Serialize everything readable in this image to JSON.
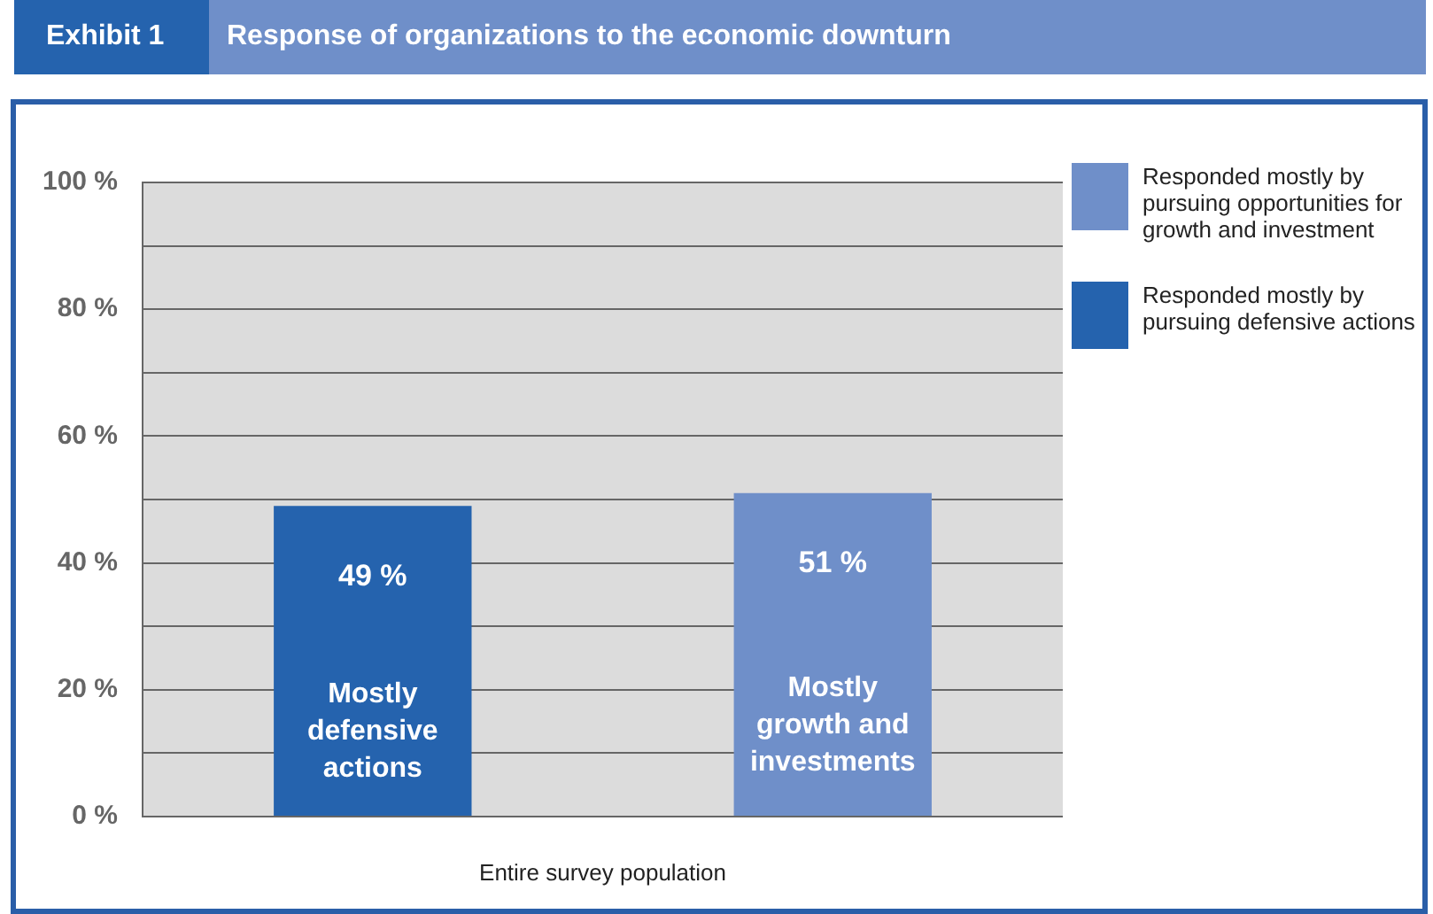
{
  "chart_data": {
    "type": "bar",
    "title": "Response of organizations to the economic downturn",
    "xlabel": "Entire survey population",
    "annotations": [
      "Exhibit 1",
      "Mostly defensive actions",
      "Mostly growth and investments"
    ],
    "categories": [
      null,
      null
    ],
    "series": [
      {
        "name": "Responded mostly by pursuing defensive actions",
        "color": "#2563ae",
        "values": [
          49,
          null
        ],
        "value_labels": [
          "49 %",
          null
        ]
      },
      {
        "name": "Responded mostly by pursuing opportunities for growth and investment",
        "color": "#6f8fc9",
        "values": [
          null,
          51
        ],
        "value_labels": [
          null,
          "51 %"
        ]
      }
    ],
    "ylim": [
      0,
      100
    ],
    "yticks": [
      {
        "value": 0,
        "label": "0 %"
      },
      {
        "value": 10,
        "label": null
      },
      {
        "value": 20,
        "label": "20 %"
      },
      {
        "value": 30,
        "label": null
      },
      {
        "value": 40,
        "label": "40 %"
      },
      {
        "value": 50,
        "label": null
      },
      {
        "value": 60,
        "label": "60 %"
      },
      {
        "value": 70,
        "label": null
      },
      {
        "value": 80,
        "label": "80 %"
      },
      {
        "value": 90,
        "label": null
      },
      {
        "value": 100,
        "label": "100 %"
      }
    ],
    "grid": "y",
    "legend": "right"
  }
}
